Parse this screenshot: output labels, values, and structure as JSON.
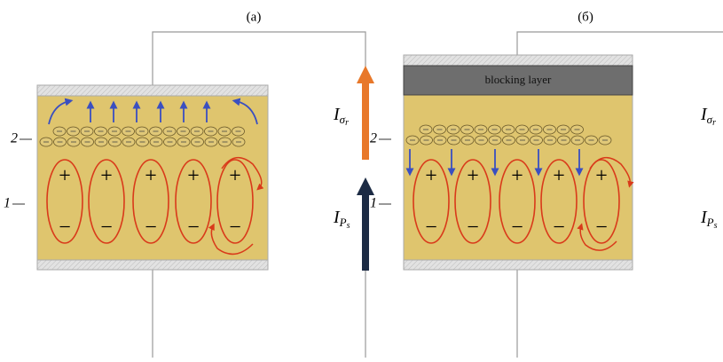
{
  "panels": [
    {
      "label": "(a)"
    },
    {
      "label": "(б)",
      "blocking_layer": "blocking layer"
    }
  ],
  "layer_labels": [
    "2",
    "1"
  ],
  "charges": {
    "positive": "+",
    "negative": "−"
  },
  "currents": [
    {
      "symbol": "I",
      "sub": "σ",
      "subsub": "r"
    },
    {
      "symbol": "I",
      "sub": "P",
      "subsub": "s"
    }
  ]
}
